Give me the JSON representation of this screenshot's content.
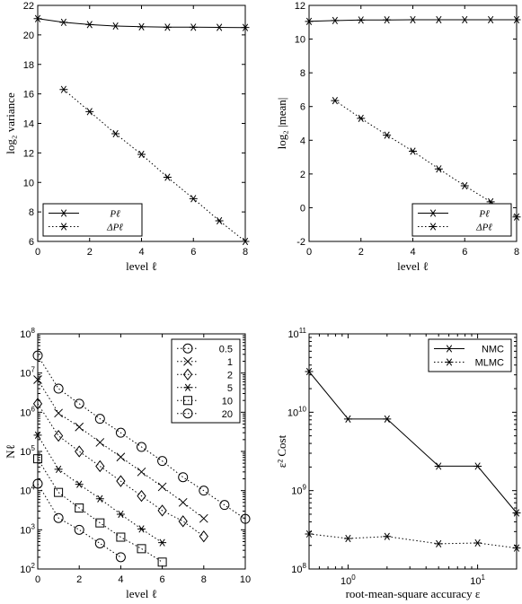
{
  "chart_data": [
    {
      "type": "line",
      "xlabel": "level ℓ",
      "ylabel": "log₂ variance",
      "xlim": [
        0,
        8
      ],
      "ylim": [
        6,
        22
      ],
      "xticks": [
        0,
        2,
        4,
        6,
        8
      ],
      "yticks": [
        6,
        8,
        10,
        12,
        14,
        16,
        18,
        20,
        22
      ],
      "legend": "bottom-left",
      "grid": false,
      "series": [
        {
          "name": "Pℓ",
          "style": "solid",
          "x": [
            0,
            1,
            2,
            3,
            4,
            5,
            6,
            7,
            8
          ],
          "y": [
            21.1,
            20.85,
            20.7,
            20.6,
            20.55,
            20.52,
            20.52,
            20.51,
            20.5
          ]
        },
        {
          "name": "ΔPℓ",
          "style": "dotted",
          "x": [
            1,
            2,
            3,
            4,
            5,
            6,
            7,
            8
          ],
          "y": [
            16.3,
            14.8,
            13.3,
            11.9,
            10.35,
            8.9,
            7.4,
            6.0
          ]
        }
      ]
    },
    {
      "type": "line",
      "xlabel": "level ℓ",
      "ylabel": "log₂ |mean|",
      "xlim": [
        0,
        8
      ],
      "ylim": [
        -2,
        12
      ],
      "xticks": [
        0,
        2,
        4,
        6,
        8
      ],
      "yticks": [
        -2,
        0,
        2,
        4,
        6,
        8,
        10,
        12
      ],
      "legend": "bottom-right",
      "grid": false,
      "series": [
        {
          "name": "Pℓ",
          "style": "solid",
          "x": [
            0,
            1,
            2,
            3,
            4,
            5,
            6,
            7,
            8
          ],
          "y": [
            11.05,
            11.1,
            11.13,
            11.14,
            11.15,
            11.15,
            11.15,
            11.15,
            11.15
          ]
        },
        {
          "name": "ΔPℓ",
          "style": "dotted",
          "x": [
            1,
            2,
            3,
            4,
            5,
            6,
            7,
            8
          ],
          "y": [
            6.35,
            5.3,
            4.3,
            3.35,
            2.3,
            1.3,
            0.35,
            -0.55
          ]
        }
      ]
    },
    {
      "type": "line",
      "xlabel": "level ℓ",
      "ylabel": "Nℓ",
      "xlim": [
        0,
        10
      ],
      "ylim": [
        100,
        100000000
      ],
      "yscale": "log",
      "xticks": [
        0,
        2,
        4,
        6,
        8,
        10
      ],
      "yticks": [
        "10^2",
        "10^3",
        "10^4",
        "10^5",
        "10^6",
        "10^7",
        "10^8"
      ],
      "legend": "top-right",
      "grid": false,
      "series": [
        {
          "name": "0.5",
          "marker": "circle",
          "x": [
            0,
            1,
            2,
            3,
            4,
            5,
            6,
            7,
            8,
            9,
            10
          ],
          "y": [
            28000000,
            4000000,
            1650000,
            680000,
            300000,
            130000,
            57000,
            22000,
            10000,
            4300,
            1900
          ]
        },
        {
          "name": "1",
          "marker": "x",
          "x": [
            0,
            1,
            2,
            3,
            4,
            5,
            6,
            7,
            8
          ],
          "y": [
            6800000,
            950000,
            420000,
            170000,
            72000,
            30000,
            12500,
            5000,
            1950
          ]
        },
        {
          "name": "2",
          "marker": "diamond",
          "x": [
            0,
            1,
            2,
            3,
            4,
            5,
            6,
            7,
            8
          ],
          "y": [
            1650000,
            250000,
            100000,
            42000,
            17500,
            7300,
            3100,
            1650,
            680
          ]
        },
        {
          "name": "5",
          "marker": "asterisk",
          "x": [
            0,
            1,
            2,
            3,
            4,
            5,
            6
          ],
          "y": [
            260000,
            35000,
            14500,
            6200,
            2500,
            1050,
            470
          ]
        },
        {
          "name": "10",
          "marker": "square",
          "x": [
            0,
            1,
            2,
            3,
            4,
            5,
            6
          ],
          "y": [
            65000,
            9000,
            3600,
            1500,
            650,
            330,
            150
          ]
        },
        {
          "name": "20",
          "marker": "circle",
          "x": [
            0,
            1,
            2,
            3,
            4
          ],
          "y": [
            15000,
            2000,
            1000,
            450,
            200
          ]
        }
      ]
    },
    {
      "type": "line",
      "xlabel": "root-mean-square accuracy ε",
      "ylabel": "ε² Cost",
      "xlim": [
        0.5,
        20
      ],
      "ylim": [
        100000000,
        100000000000
      ],
      "xscale": "log",
      "yscale": "log",
      "xticks": [
        "10^0",
        "10^1"
      ],
      "yticks": [
        "10^8",
        "10^9",
        "10^10",
        "10^11"
      ],
      "legend": "top-right",
      "grid": false,
      "series": [
        {
          "name": "NMC",
          "style": "solid",
          "x": [
            0.5,
            1,
            2,
            5,
            10,
            20
          ],
          "y": [
            33000000000,
            8200000000,
            8200000000,
            2050000000,
            2050000000,
            520000000
          ]
        },
        {
          "name": "MLMC",
          "style": "dotted",
          "x": [
            0.5,
            1,
            2,
            5,
            10,
            20
          ],
          "y": [
            280000000,
            245000000,
            260000000,
            210000000,
            215000000,
            185000000
          ]
        }
      ]
    }
  ]
}
